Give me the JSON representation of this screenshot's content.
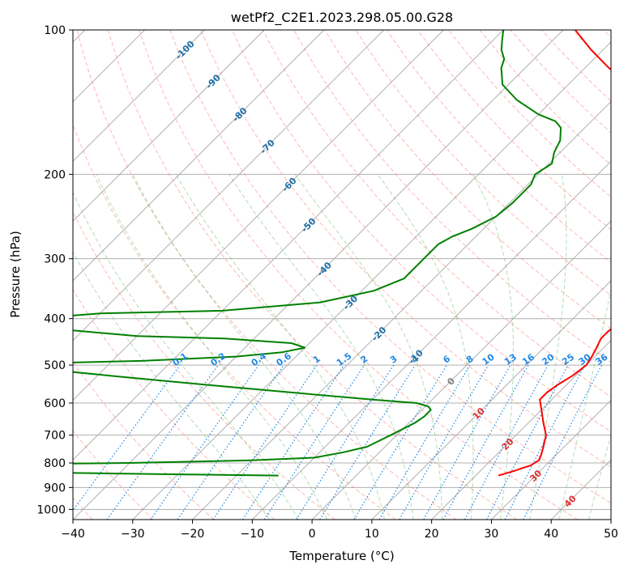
{
  "chart_data": {
    "type": "line",
    "title": "wetPf2_C2E1.2023.298.05.00.G28",
    "xlabel": "Temperature (°C)",
    "ylabel": "Pressure (hPa)",
    "xlim": [
      -40,
      50
    ],
    "ylim": [
      1050,
      100
    ],
    "y_scale": "log",
    "skew": "skew-T log-p diagram",
    "grid": true,
    "x_ticks": [
      "−40",
      "−30",
      "−20",
      "−10",
      "0",
      "10",
      "20",
      "30",
      "40",
      "50"
    ],
    "x_tick_values": [
      -40,
      -30,
      -20,
      -10,
      0,
      10,
      20,
      30,
      40,
      50
    ],
    "y_ticks": [
      "100",
      "200",
      "300",
      "400",
      "500",
      "600",
      "700",
      "800",
      "900",
      "1000"
    ],
    "y_tick_values": [
      100,
      200,
      300,
      400,
      500,
      600,
      700,
      800,
      900,
      1000
    ],
    "series": [
      {
        "color": "#ff0000",
        "points": [
          [
            850,
            23.8
          ],
          [
            840,
            24.8
          ],
          [
            830,
            25.8
          ],
          [
            820,
            26.5
          ],
          [
            810,
            27.5
          ],
          [
            790,
            28.0
          ],
          [
            770,
            27.5
          ],
          [
            740,
            26.5
          ],
          [
            700,
            25.0
          ],
          [
            660,
            22.5
          ],
          [
            620,
            20.0
          ],
          [
            590,
            18.0
          ],
          [
            570,
            18.0
          ],
          [
            550,
            18.5
          ],
          [
            525,
            19.5
          ],
          [
            500,
            20.0
          ],
          [
            480,
            19.5
          ],
          [
            460,
            18.8
          ],
          [
            440,
            18.0
          ],
          [
            425,
            18.0
          ],
          [
            410,
            18.5
          ],
          [
            390,
            18.0
          ],
          [
            360,
            15.5
          ],
          [
            330,
            12.3
          ],
          [
            300,
            9.0
          ],
          [
            280,
            6.5
          ],
          [
            260,
            3.5
          ],
          [
            240,
            0.5
          ],
          [
            220,
            -2.5
          ],
          [
            200,
            -5.5
          ],
          [
            185,
            -7.5
          ],
          [
            170,
            -9.5
          ],
          [
            160,
            -11.5
          ],
          [
            150,
            -13.0
          ],
          [
            140,
            -15.0
          ],
          [
            130,
            -19.5
          ],
          [
            120,
            -26.0
          ],
          [
            110,
            -32.0
          ],
          [
            100,
            -38.0
          ]
        ]
      },
      {
        "color": "#008000",
        "points": [
          [
            850,
            -13
          ],
          [
            845,
            -30
          ],
          [
            840,
            -45
          ],
          [
            835,
            -65
          ],
          [
            830,
            -90
          ],
          [
            810,
            -80
          ],
          [
            800,
            -40
          ],
          [
            790,
            -20
          ],
          [
            780,
            -10
          ],
          [
            760,
            -6
          ],
          [
            740,
            -3
          ],
          [
            720,
            -2
          ],
          [
            700,
            -1
          ],
          [
            680,
            0
          ],
          [
            660,
            1
          ],
          [
            640,
            1.5
          ],
          [
            620,
            1.5
          ],
          [
            610,
            0.5
          ],
          [
            600,
            -2
          ],
          [
            590,
            -10
          ],
          [
            570,
            -25
          ],
          [
            550,
            -40
          ],
          [
            530,
            -55
          ],
          [
            510,
            -70
          ],
          [
            500,
            -80
          ],
          [
            495,
            -70
          ],
          [
            490,
            -55
          ],
          [
            480,
            -40
          ],
          [
            470,
            -33
          ],
          [
            460,
            -30
          ],
          [
            450,
            -33
          ],
          [
            440,
            -45
          ],
          [
            435,
            -60
          ],
          [
            420,
            -75
          ],
          [
            400,
            -80
          ],
          [
            390,
            -70
          ],
          [
            385,
            -50
          ],
          [
            370,
            -35
          ],
          [
            350,
            -28
          ],
          [
            330,
            -25
          ],
          [
            300,
            -25
          ],
          [
            280,
            -25
          ],
          [
            270,
            -24
          ],
          [
            260,
            -22
          ],
          [
            245,
            -20
          ],
          [
            230,
            -19.5
          ],
          [
            220,
            -19.5
          ],
          [
            210,
            -19.5
          ],
          [
            200,
            -20.5
          ],
          [
            190,
            -19.5
          ],
          [
            180,
            -21
          ],
          [
            170,
            -22
          ],
          [
            160,
            -24
          ],
          [
            155,
            -26
          ],
          [
            150,
            -30
          ],
          [
            140,
            -36
          ],
          [
            130,
            -41
          ],
          [
            120,
            -44
          ],
          [
            115,
            -45
          ],
          [
            110,
            -47
          ],
          [
            105,
            -48.5
          ],
          [
            100,
            -50
          ]
        ]
      }
    ],
    "dry_adiabats_C": [
      -40,
      -30,
      -20,
      -10,
      0,
      10,
      20,
      30,
      40,
      50,
      60,
      70,
      80,
      90,
      100,
      110,
      120,
      130,
      140,
      150,
      160,
      170,
      180,
      190,
      200,
      210,
      220
    ],
    "moist_adiabats_C": [
      -10,
      -5,
      0,
      5,
      10,
      15,
      20,
      25,
      30,
      35,
      40,
      45
    ],
    "mixing_ratio_lines": [
      0.1,
      0.2,
      0.4,
      0.6,
      1,
      1.5,
      2,
      3,
      4,
      6,
      8,
      10,
      13,
      16,
      20,
      25,
      30,
      36
    ],
    "mixing_ratio_labels": [
      "0.1",
      "0.2",
      "0.4",
      "0.6",
      "1",
      "1.5",
      "2",
      "3",
      "4",
      "6",
      "8",
      "10",
      "13",
      "16",
      "20",
      "25",
      "30",
      "36"
    ],
    "isotherm_labels": {
      "blue": [
        "-100",
        "-90",
        "-80",
        "-70",
        "-60",
        "-50",
        "-40",
        "-30",
        "-20",
        "-10"
      ],
      "gray": [
        "0"
      ],
      "red": [
        "10",
        "20",
        "30",
        "40"
      ]
    },
    "colors": {
      "temperature": "#ff0000",
      "dewpoint": "#008000",
      "mixing_ratio": "#1e88e5",
      "dry_adiabat": "#fa8072",
      "moist_adiabat": "#66bb6a",
      "isotherm_label_blue": "#1f6fa8",
      "isotherm_label_red": "#e0302f",
      "grid": "#b0b0b0"
    }
  }
}
